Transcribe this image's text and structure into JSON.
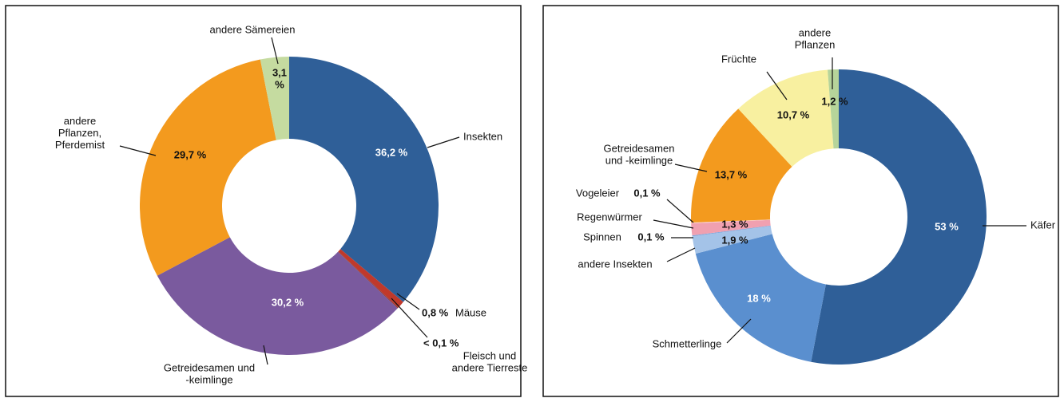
{
  "chart_data": [
    {
      "type": "donut",
      "categories": [
        "Insekten",
        "Mäuse",
        "Fleisch und\nandere Tierreste",
        "Getreidesamen und\n-keimlinge",
        "andere\nPflanzen,\nPferdemist",
        "andere Sämereien"
      ],
      "values": [
        36.2,
        0.8,
        0.1,
        30.2,
        29.7,
        3.1
      ],
      "value_labels": [
        "36,2 %",
        "0,8 %",
        "< 0,1 %",
        "30,2 %",
        "29,7 %",
        "3,1\n%"
      ],
      "colors": [
        "#2f5f98",
        "#c0392b",
        "#8a3a3a",
        "#7a5a9e",
        "#f39a1e",
        "#c5dba0"
      ]
    },
    {
      "type": "donut",
      "categories": [
        "Käfer",
        "Schmetterlinge",
        "andere Insekten",
        "Spinnen",
        "Regenwürmer",
        "Vogeleier",
        "Getreidesamen\nund -keimlinge",
        "Früchte",
        "andere\nPflanzen"
      ],
      "values": [
        53,
        18,
        1.9,
        0.1,
        1.3,
        0.1,
        13.7,
        10.7,
        1.2
      ],
      "value_labels": [
        "53 %",
        "18 %",
        "1,9 %",
        "0,1 %",
        "1,3 %",
        "0,1 %",
        "13,7 %",
        "10,7 %",
        "1,2 %"
      ],
      "colors": [
        "#2f5f98",
        "#5a8fcf",
        "#a4c3e8",
        "#7fa6dc",
        "#f0a0b0",
        "#f7c8c8",
        "#f39a1e",
        "#f8f0a0",
        "#b6d49a"
      ]
    }
  ]
}
